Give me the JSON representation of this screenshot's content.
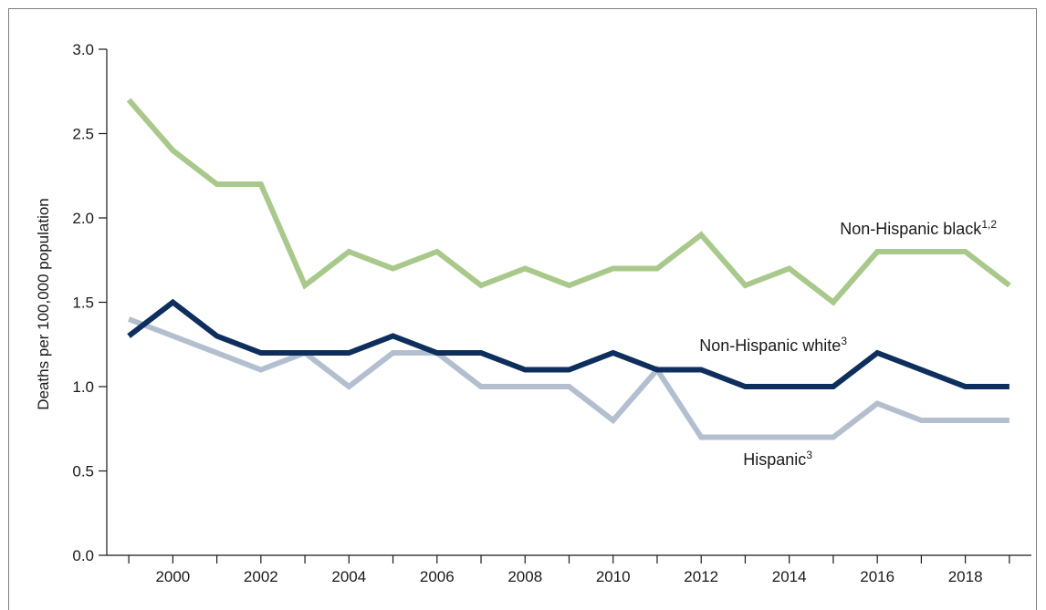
{
  "chart_data": {
    "type": "line",
    "title": "",
    "xlabel": "",
    "ylabel": "Deaths per 100,000 population",
    "x": [
      1999,
      2000,
      2001,
      2002,
      2003,
      2004,
      2005,
      2006,
      2007,
      2008,
      2009,
      2010,
      2011,
      2012,
      2013,
      2014,
      2015,
      2016,
      2017,
      2018,
      2019
    ],
    "xlim": [
      1998.5,
      2019.5
    ],
    "xticks": [
      2000,
      2002,
      2004,
      2006,
      2008,
      2010,
      2012,
      2014,
      2016,
      2018
    ],
    "ylim": [
      0,
      3.0
    ],
    "yticks": [
      "0.0",
      "0.5",
      "1.0",
      "1.5",
      "2.0",
      "2.5",
      "3.0"
    ],
    "grid": false,
    "legend": "none",
    "series": [
      {
        "name": "Non-Hispanic black",
        "superscript": "1,2",
        "color": "#a9c98c",
        "values": [
          2.7,
          2.4,
          2.2,
          2.2,
          1.6,
          1.8,
          1.7,
          1.8,
          1.6,
          1.7,
          1.6,
          1.7,
          1.7,
          1.9,
          1.6,
          1.7,
          1.5,
          1.8,
          1.8,
          1.8,
          1.6
        ]
      },
      {
        "name": "Non-Hispanic white",
        "superscript": "3",
        "color": "#0e2f5e",
        "values": [
          1.3,
          1.5,
          1.3,
          1.2,
          1.2,
          1.2,
          1.3,
          1.2,
          1.2,
          1.1,
          1.1,
          1.2,
          1.1,
          1.1,
          1.0,
          1.0,
          1.0,
          1.2,
          1.1,
          1.0,
          1.0
        ]
      },
      {
        "name": "Hispanic",
        "superscript": "3",
        "color": "#b3bfcf",
        "values": [
          1.4,
          1.3,
          1.2,
          1.1,
          1.2,
          1.0,
          1.2,
          1.2,
          1.0,
          1.0,
          1.0,
          0.8,
          1.1,
          0.7,
          0.7,
          0.7,
          0.7,
          0.9,
          0.8,
          0.8,
          0.8
        ]
      }
    ]
  }
}
